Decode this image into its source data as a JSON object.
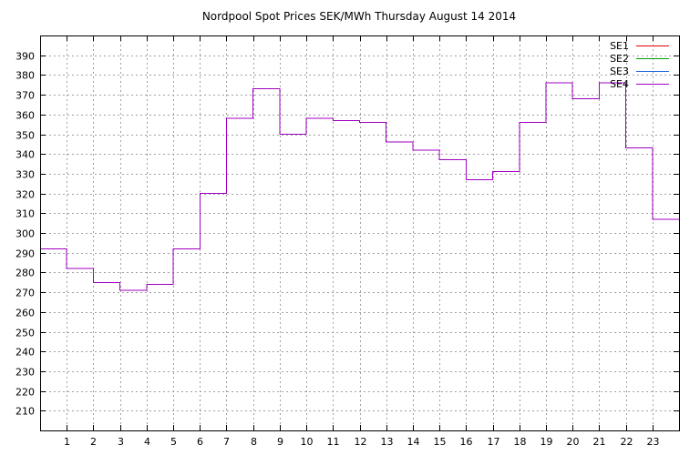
{
  "chart_data": {
    "type": "line",
    "step": true,
    "title": "Nordpool Spot Prices SEK/MWh Thursday August 14 2014",
    "xlabel": "",
    "ylabel": "",
    "xlim": [
      0,
      24
    ],
    "ylim": [
      200,
      400
    ],
    "x_ticks": [
      1,
      2,
      3,
      4,
      5,
      6,
      7,
      8,
      9,
      10,
      11,
      12,
      13,
      14,
      15,
      16,
      17,
      18,
      19,
      20,
      21,
      22,
      23
    ],
    "y_ticks": [
      210,
      220,
      230,
      240,
      250,
      260,
      270,
      280,
      290,
      300,
      310,
      320,
      330,
      340,
      350,
      360,
      370,
      380,
      390
    ],
    "grid": true,
    "legend_position": "top-right",
    "x": [
      0,
      1,
      2,
      3,
      4,
      5,
      6,
      7,
      8,
      9,
      10,
      11,
      12,
      13,
      14,
      15,
      16,
      17,
      18,
      19,
      20,
      21,
      22,
      23
    ],
    "series": [
      {
        "name": "SE1",
        "color": "#e00000",
        "values": [
          292,
          282,
          275,
          271,
          274,
          292,
          320,
          358,
          373,
          350,
          358,
          357,
          356,
          346,
          342,
          337,
          327,
          331,
          356,
          376,
          368,
          376,
          343,
          307
        ]
      },
      {
        "name": "SE2",
        "color": "#00a000",
        "values": [
          292,
          282,
          275,
          271,
          274,
          292,
          320,
          358,
          373,
          350,
          358,
          357,
          356,
          346,
          342,
          337,
          327,
          331,
          356,
          376,
          368,
          376,
          343,
          307
        ]
      },
      {
        "name": "SE3",
        "color": "#1e64dc",
        "values": [
          292,
          282,
          275,
          271,
          274,
          292,
          320,
          358,
          373,
          350,
          358,
          357,
          356,
          346,
          342,
          337,
          327,
          331,
          356,
          376,
          368,
          376,
          343,
          307
        ]
      },
      {
        "name": "SE4",
        "color": "#a000c0",
        "values": [
          292,
          282,
          275,
          271,
          274,
          292,
          320,
          358,
          373,
          350,
          358,
          357,
          356,
          346,
          342,
          337,
          327,
          331,
          356,
          376,
          368,
          376,
          343,
          307
        ]
      }
    ]
  }
}
